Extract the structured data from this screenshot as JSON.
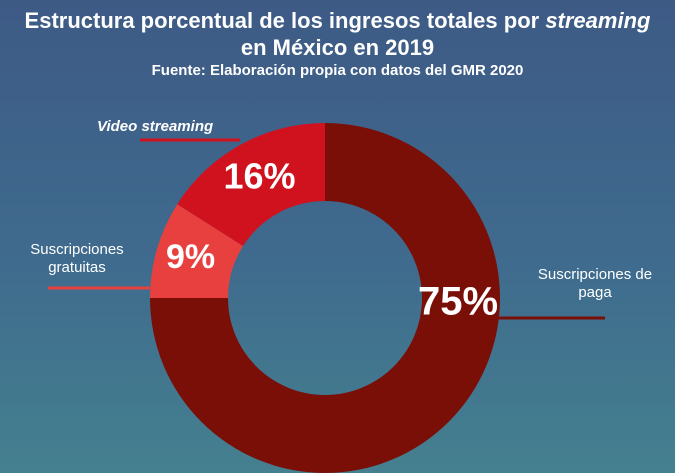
{
  "header": {
    "title_part1": "Estructura porcentual de los ingresos totales por ",
    "title_italic": "streaming",
    "title_line2": "en México en 2019",
    "subtitle": "Fuente: Elaboración propia con datos del GMR 2020"
  },
  "chart_data": {
    "type": "pie",
    "donut": true,
    "title": "Estructura porcentual de los ingresos totales por streaming en México en 2019",
    "subtitle": "Fuente: Elaboración propia con datos del GMR 2020",
    "slices": [
      {
        "name": "Suscripciones de paga",
        "value": 75,
        "label": "75%",
        "color": "#7a0f08"
      },
      {
        "name": "Suscripciones gratuitas",
        "value": 9,
        "label": "9%",
        "color": "#e8403f"
      },
      {
        "name": "Video streaming",
        "value": 16,
        "label": "16%",
        "color": "#d0121e"
      }
    ],
    "legend": "callout labels"
  },
  "callouts": {
    "paga_line1": "Suscripciones de",
    "paga_line2": "paga",
    "gratuitas_line1": "Suscripciones",
    "gratuitas_line2": "gratuitas",
    "video": "Video streaming"
  }
}
